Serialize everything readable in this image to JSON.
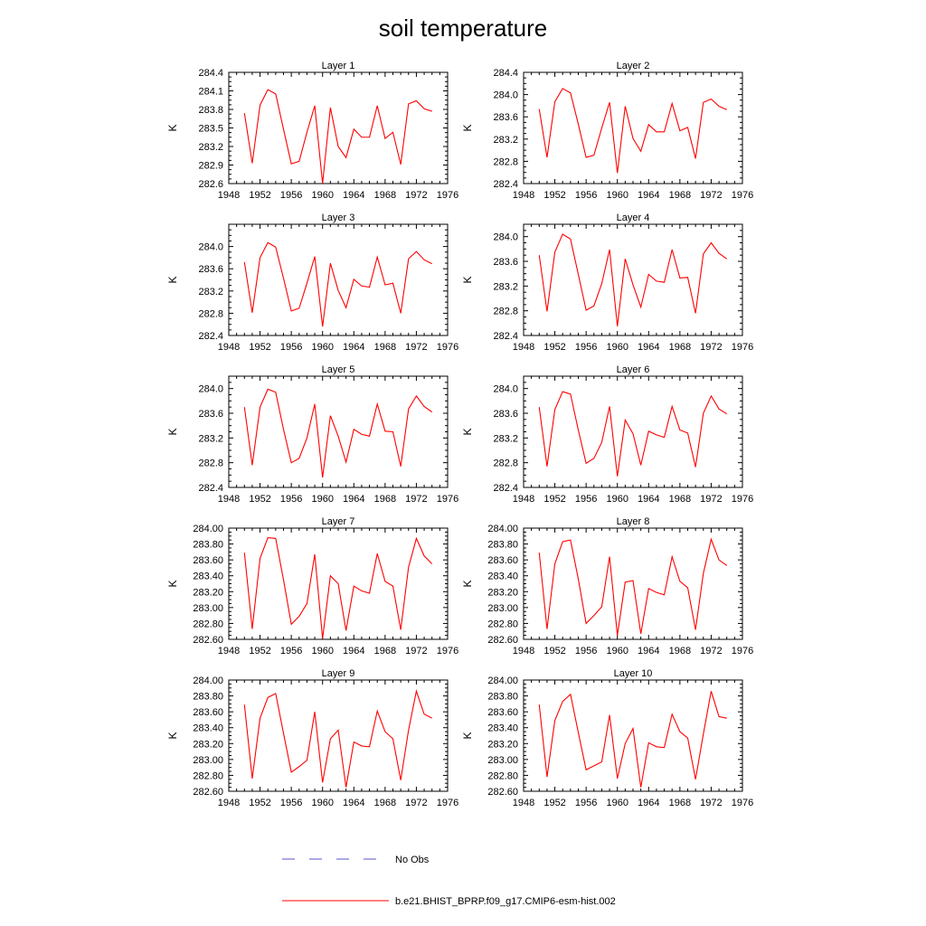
{
  "figure_title": "soil temperature",
  "legend": {
    "no_obs_label": "No Obs",
    "no_obs_color": "#5555cc",
    "model_label": "b.e21.BHIST_BPRP.f09_g17.CMIP6-esm-hist.002",
    "model_color": "#ff0000"
  },
  "chart_data": [
    {
      "type": "line",
      "title": "Layer 1",
      "xlabel": "",
      "ylabel": "K",
      "xlim": [
        1948,
        1976
      ],
      "xticks": [
        1948,
        1952,
        1956,
        1960,
        1964,
        1968,
        1972,
        1976
      ],
      "ylim": [
        282.6,
        284.4
      ],
      "yticks": [
        "282.6",
        "282.9",
        "283.2",
        "283.5",
        "283.8",
        "284.1",
        "284.4"
      ],
      "series": [
        {
          "name": "b.e21.BHIST_BPRP.f09_g17.CMIP6-esm-hist.002",
          "color": "#ff0000",
          "x": [
            1950,
            1951,
            1952,
            1953,
            1954,
            1955,
            1956,
            1957,
            1958,
            1959,
            1960,
            1961,
            1962,
            1963,
            1964,
            1965,
            1966,
            1967,
            1968,
            1969,
            1970,
            1971,
            1972,
            1973,
            1974
          ],
          "y": [
            283.74,
            282.93,
            283.87,
            284.12,
            284.05,
            283.48,
            282.92,
            282.96,
            283.43,
            283.86,
            282.6,
            283.83,
            283.2,
            283.02,
            283.48,
            283.35,
            283.35,
            283.86,
            283.33,
            283.43,
            282.91,
            283.89,
            283.94,
            283.81,
            283.77
          ]
        }
      ]
    },
    {
      "type": "line",
      "title": "Layer 2",
      "xlabel": "",
      "ylabel": "K",
      "xlim": [
        1948,
        1976
      ],
      "xticks": [
        1948,
        1952,
        1956,
        1960,
        1964,
        1968,
        1972,
        1976
      ],
      "ylim": [
        282.4,
        284.4
      ],
      "yticks": [
        "282.4",
        "282.8",
        "283.2",
        "283.6",
        "284.0",
        "284.4"
      ],
      "series": [
        {
          "name": "b.e21.BHIST_BPRP.f09_g17.CMIP6-esm-hist.002",
          "color": "#ff0000",
          "x": [
            1950,
            1951,
            1952,
            1953,
            1954,
            1955,
            1956,
            1957,
            1958,
            1959,
            1960,
            1961,
            1962,
            1963,
            1964,
            1965,
            1966,
            1967,
            1968,
            1969,
            1970,
            1971,
            1972,
            1973,
            1974
          ],
          "y": [
            283.74,
            282.87,
            283.87,
            284.11,
            284.03,
            283.47,
            282.87,
            282.91,
            283.4,
            283.86,
            282.59,
            283.79,
            283.21,
            282.98,
            283.46,
            283.33,
            283.33,
            283.84,
            283.35,
            283.41,
            282.85,
            283.86,
            283.92,
            283.79,
            283.73
          ]
        }
      ]
    },
    {
      "type": "line",
      "title": "Layer 3",
      "xlabel": "",
      "ylabel": "K",
      "xlim": [
        1948,
        1976
      ],
      "xticks": [
        1948,
        1952,
        1956,
        1960,
        1964,
        1968,
        1972,
        1976
      ],
      "ylim": [
        282.4,
        284.4
      ],
      "yticks": [
        "282.4",
        "282.8",
        "283.2",
        "283.6",
        "284.0"
      ],
      "series": [
        {
          "name": "b.e21.BHIST_BPRP.f09_g17.CMIP6-esm-hist.002",
          "color": "#ff0000",
          "x": [
            1950,
            1951,
            1952,
            1953,
            1954,
            1955,
            1956,
            1957,
            1958,
            1959,
            1960,
            1961,
            1962,
            1963,
            1964,
            1965,
            1966,
            1967,
            1968,
            1969,
            1970,
            1971,
            1972,
            1973,
            1974
          ],
          "y": [
            283.72,
            282.81,
            283.8,
            284.07,
            283.99,
            283.43,
            282.84,
            282.89,
            283.34,
            283.82,
            282.56,
            283.7,
            283.21,
            282.9,
            283.41,
            283.29,
            283.27,
            283.81,
            283.31,
            283.34,
            282.8,
            283.78,
            283.91,
            283.76,
            283.69
          ]
        }
      ]
    },
    {
      "type": "line",
      "title": "Layer 4",
      "xlabel": "",
      "ylabel": "K",
      "xlim": [
        1948,
        1976
      ],
      "xticks": [
        1948,
        1952,
        1956,
        1960,
        1964,
        1968,
        1972,
        1976
      ],
      "ylim": [
        282.4,
        284.2
      ],
      "yticks": [
        "282.4",
        "282.8",
        "283.2",
        "283.6",
        "284.0"
      ],
      "series": [
        {
          "name": "b.e21.BHIST_BPRP.f09_g17.CMIP6-esm-hist.002",
          "color": "#ff0000",
          "x": [
            1950,
            1951,
            1952,
            1953,
            1954,
            1955,
            1956,
            1957,
            1958,
            1959,
            1960,
            1961,
            1962,
            1963,
            1964,
            1965,
            1966,
            1967,
            1968,
            1969,
            1970,
            1971,
            1972,
            1973,
            1974
          ],
          "y": [
            283.7,
            282.79,
            283.75,
            284.04,
            283.96,
            283.39,
            282.81,
            282.88,
            283.24,
            283.79,
            282.55,
            283.64,
            283.22,
            282.86,
            283.39,
            283.28,
            283.26,
            283.79,
            283.33,
            283.34,
            282.76,
            283.72,
            283.9,
            283.73,
            283.64
          ]
        }
      ]
    },
    {
      "type": "line",
      "title": "Layer 5",
      "xlabel": "",
      "ylabel": "K",
      "xlim": [
        1948,
        1976
      ],
      "xticks": [
        1948,
        1952,
        1956,
        1960,
        1964,
        1968,
        1972,
        1976
      ],
      "ylim": [
        282.4,
        284.2
      ],
      "yticks": [
        "282.4",
        "282.8",
        "283.2",
        "283.6",
        "284.0"
      ],
      "series": [
        {
          "name": "b.e21.BHIST_BPRP.f09_g17.CMIP6-esm-hist.002",
          "color": "#ff0000",
          "x": [
            1950,
            1951,
            1952,
            1953,
            1954,
            1955,
            1956,
            1957,
            1958,
            1959,
            1960,
            1961,
            1962,
            1963,
            1964,
            1965,
            1966,
            1967,
            1968,
            1969,
            1970,
            1971,
            1972,
            1973,
            1974
          ],
          "y": [
            283.7,
            282.76,
            283.7,
            283.99,
            283.94,
            283.34,
            282.8,
            282.87,
            283.2,
            283.75,
            282.56,
            283.56,
            283.23,
            282.81,
            283.34,
            283.26,
            283.23,
            283.75,
            283.31,
            283.3,
            282.74,
            283.67,
            283.88,
            283.71,
            283.62
          ]
        }
      ]
    },
    {
      "type": "line",
      "title": "Layer 6",
      "xlabel": "",
      "ylabel": "K",
      "xlim": [
        1948,
        1976
      ],
      "xticks": [
        1948,
        1952,
        1956,
        1960,
        1964,
        1968,
        1972,
        1976
      ],
      "ylim": [
        282.4,
        284.2
      ],
      "yticks": [
        "282.4",
        "282.8",
        "283.2",
        "283.6",
        "284.0"
      ],
      "series": [
        {
          "name": "b.e21.BHIST_BPRP.f09_g17.CMIP6-esm-hist.002",
          "color": "#ff0000",
          "x": [
            1950,
            1951,
            1952,
            1953,
            1954,
            1955,
            1956,
            1957,
            1958,
            1959,
            1960,
            1961,
            1962,
            1963,
            1964,
            1965,
            1966,
            1967,
            1968,
            1969,
            1970,
            1971,
            1972,
            1973,
            1974
          ],
          "y": [
            283.7,
            282.74,
            283.66,
            283.95,
            283.91,
            283.33,
            282.79,
            282.87,
            283.13,
            283.71,
            282.58,
            283.49,
            283.27,
            282.76,
            283.31,
            283.25,
            283.21,
            283.71,
            283.33,
            283.28,
            282.73,
            283.6,
            283.88,
            283.67,
            283.59
          ]
        }
      ]
    },
    {
      "type": "line",
      "title": "Layer 7",
      "xlabel": "",
      "ylabel": "K",
      "xlim": [
        1948,
        1976
      ],
      "xticks": [
        1948,
        1952,
        1956,
        1960,
        1964,
        1968,
        1972,
        1976
      ],
      "ylim": [
        282.6,
        284.0
      ],
      "yticks": [
        "282.60",
        "282.80",
        "283.00",
        "283.20",
        "283.40",
        "283.60",
        "283.80",
        "284.00"
      ],
      "series": [
        {
          "name": "b.e21.BHIST_BPRP.f09_g17.CMIP6-esm-hist.002",
          "color": "#ff0000",
          "x": [
            1950,
            1951,
            1952,
            1953,
            1954,
            1955,
            1956,
            1957,
            1958,
            1959,
            1960,
            1961,
            1962,
            1963,
            1964,
            1965,
            1966,
            1967,
            1968,
            1969,
            1970,
            1971,
            1972,
            1973,
            1974
          ],
          "y": [
            283.69,
            282.73,
            283.62,
            283.88,
            283.87,
            283.35,
            282.79,
            282.89,
            283.05,
            283.67,
            282.61,
            283.4,
            283.3,
            282.71,
            283.27,
            283.21,
            283.18,
            283.68,
            283.33,
            283.27,
            282.72,
            283.51,
            283.87,
            283.65,
            283.55
          ]
        }
      ]
    },
    {
      "type": "line",
      "title": "Layer 8",
      "xlabel": "",
      "ylabel": "K",
      "xlim": [
        1948,
        1976
      ],
      "xticks": [
        1948,
        1952,
        1956,
        1960,
        1964,
        1968,
        1972,
        1976
      ],
      "ylim": [
        282.6,
        284.0
      ],
      "yticks": [
        "282.60",
        "282.80",
        "283.00",
        "283.20",
        "283.40",
        "283.60",
        "283.80",
        "284.00"
      ],
      "series": [
        {
          "name": "b.e21.BHIST_BPRP.f09_g17.CMIP6-esm-hist.002",
          "color": "#ff0000",
          "x": [
            1950,
            1951,
            1952,
            1953,
            1954,
            1955,
            1956,
            1957,
            1958,
            1959,
            1960,
            1961,
            1962,
            1963,
            1964,
            1965,
            1966,
            1967,
            1968,
            1969,
            1970,
            1971,
            1972,
            1973,
            1974
          ],
          "y": [
            283.69,
            282.73,
            283.55,
            283.83,
            283.85,
            283.36,
            282.8,
            282.9,
            283.01,
            283.64,
            282.65,
            283.32,
            283.34,
            282.67,
            283.24,
            283.19,
            283.16,
            283.64,
            283.33,
            283.25,
            282.72,
            283.43,
            283.86,
            283.6,
            283.53
          ]
        }
      ]
    },
    {
      "type": "line",
      "title": "Layer 9",
      "xlabel": "",
      "ylabel": "K",
      "xlim": [
        1948,
        1976
      ],
      "xticks": [
        1948,
        1952,
        1956,
        1960,
        1964,
        1968,
        1972,
        1976
      ],
      "ylim": [
        282.6,
        284.0
      ],
      "yticks": [
        "282.60",
        "282.80",
        "283.00",
        "283.20",
        "283.40",
        "283.60",
        "283.80",
        "284.00"
      ],
      "series": [
        {
          "name": "b.e21.BHIST_BPRP.f09_g17.CMIP6-esm-hist.002",
          "color": "#ff0000",
          "x": [
            1950,
            1951,
            1952,
            1953,
            1954,
            1955,
            1956,
            1957,
            1958,
            1959,
            1960,
            1961,
            1962,
            1963,
            1964,
            1965,
            1966,
            1967,
            1968,
            1969,
            1970,
            1971,
            1972,
            1973,
            1974
          ],
          "y": [
            283.69,
            282.76,
            283.52,
            283.78,
            283.83,
            283.33,
            282.84,
            282.91,
            282.99,
            283.6,
            282.71,
            283.26,
            283.37,
            282.65,
            283.22,
            283.17,
            283.16,
            283.61,
            283.35,
            283.26,
            282.74,
            283.37,
            283.86,
            283.57,
            283.52
          ]
        }
      ]
    },
    {
      "type": "line",
      "title": "Layer 10",
      "xlabel": "",
      "ylabel": "K",
      "xlim": [
        1948,
        1976
      ],
      "xticks": [
        1948,
        1952,
        1956,
        1960,
        1964,
        1968,
        1972,
        1976
      ],
      "ylim": [
        282.6,
        284.0
      ],
      "yticks": [
        "282.60",
        "282.80",
        "283.00",
        "283.20",
        "283.40",
        "283.60",
        "283.80",
        "284.00"
      ],
      "series": [
        {
          "name": "b.e21.BHIST_BPRP.f09_g17.CMIP6-esm-hist.002",
          "color": "#ff0000",
          "x": [
            1950,
            1951,
            1952,
            1953,
            1954,
            1955,
            1956,
            1957,
            1958,
            1959,
            1960,
            1961,
            1962,
            1963,
            1964,
            1965,
            1966,
            1967,
            1968,
            1969,
            1970,
            1971,
            1972,
            1973,
            1974
          ],
          "y": [
            283.69,
            282.78,
            283.49,
            283.73,
            283.82,
            283.34,
            282.87,
            282.92,
            282.97,
            283.56,
            282.76,
            283.2,
            283.39,
            282.65,
            283.21,
            283.16,
            283.15,
            283.57,
            283.35,
            283.27,
            282.75,
            283.32,
            283.86,
            283.54,
            283.52
          ]
        }
      ]
    }
  ]
}
